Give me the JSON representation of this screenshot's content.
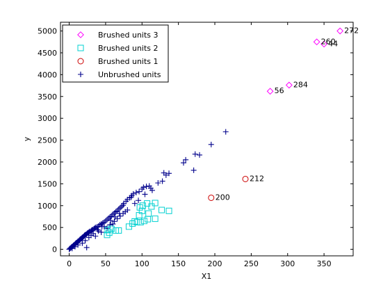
{
  "chart_data": {
    "type": "scatter",
    "title": "",
    "xlabel": "X1",
    "ylabel": "y",
    "xlim": [
      -12,
      390
    ],
    "ylim": [
      -150,
      5200
    ],
    "xticks": [
      0,
      50,
      100,
      150,
      200,
      250,
      300,
      350
    ],
    "yticks": [
      0,
      500,
      1000,
      1500,
      2000,
      2500,
      3000,
      3500,
      4000,
      4500,
      5000
    ],
    "grid": false,
    "legend_position": "top-left",
    "series": [
      {
        "name": "Brushed units 3",
        "marker": "diamond",
        "color": "#ff00ff",
        "points": [
          {
            "x": 276,
            "y": 3620,
            "label": "56"
          },
          {
            "x": 302,
            "y": 3760,
            "label": "284"
          },
          {
            "x": 340,
            "y": 4750,
            "label": "260"
          },
          {
            "x": 350,
            "y": 4700,
            "label": "44"
          },
          {
            "x": 372,
            "y": 5000,
            "label": "272"
          }
        ]
      },
      {
        "name": "Brushed units 2",
        "marker": "square",
        "color": "#00d0d0",
        "points": [
          {
            "x": 52,
            "y": 330
          },
          {
            "x": 55,
            "y": 380
          },
          {
            "x": 53,
            "y": 440
          },
          {
            "x": 58,
            "y": 470
          },
          {
            "x": 64,
            "y": 430
          },
          {
            "x": 68,
            "y": 430
          },
          {
            "x": 82,
            "y": 520
          },
          {
            "x": 87,
            "y": 590
          },
          {
            "x": 90,
            "y": 640
          },
          {
            "x": 93,
            "y": 620
          },
          {
            "x": 98,
            "y": 620
          },
          {
            "x": 103,
            "y": 650
          },
          {
            "x": 108,
            "y": 690
          },
          {
            "x": 118,
            "y": 700
          },
          {
            "x": 127,
            "y": 900
          },
          {
            "x": 137,
            "y": 880
          },
          {
            "x": 97,
            "y": 960
          },
          {
            "x": 101,
            "y": 1000
          },
          {
            "x": 107,
            "y": 1050
          },
          {
            "x": 113,
            "y": 980
          },
          {
            "x": 118,
            "y": 1060
          },
          {
            "x": 96,
            "y": 780
          },
          {
            "x": 100,
            "y": 880
          },
          {
            "x": 109,
            "y": 820
          }
        ]
      },
      {
        "name": "Brushed units 1",
        "marker": "circle",
        "color": "#cc0000",
        "points": [
          {
            "x": 195,
            "y": 1180,
            "label": "200"
          },
          {
            "x": 242,
            "y": 1610,
            "label": "212"
          }
        ]
      },
      {
        "name": "Unbrushed units",
        "marker": "plus",
        "color": "#00008b",
        "points": [
          {
            "x": 0,
            "y": 0
          },
          {
            "x": 1,
            "y": 20
          },
          {
            "x": 2,
            "y": 30
          },
          {
            "x": 3,
            "y": 50
          },
          {
            "x": 4,
            "y": 60
          },
          {
            "x": 5,
            "y": 70
          },
          {
            "x": 6,
            "y": 90
          },
          {
            "x": 7,
            "y": 100
          },
          {
            "x": 8,
            "y": 120
          },
          {
            "x": 9,
            "y": 140
          },
          {
            "x": 10,
            "y": 150
          },
          {
            "x": 11,
            "y": 160
          },
          {
            "x": 12,
            "y": 180
          },
          {
            "x": 13,
            "y": 190
          },
          {
            "x": 14,
            "y": 210
          },
          {
            "x": 15,
            "y": 230
          },
          {
            "x": 16,
            "y": 240
          },
          {
            "x": 17,
            "y": 250
          },
          {
            "x": 18,
            "y": 270
          },
          {
            "x": 19,
            "y": 280
          },
          {
            "x": 20,
            "y": 300
          },
          {
            "x": 21,
            "y": 320
          },
          {
            "x": 22,
            "y": 330
          },
          {
            "x": 23,
            "y": 340
          },
          {
            "x": 24,
            "y": 350
          },
          {
            "x": 25,
            "y": 370
          },
          {
            "x": 26,
            "y": 380
          },
          {
            "x": 27,
            "y": 390
          },
          {
            "x": 28,
            "y": 410
          },
          {
            "x": 30,
            "y": 420
          },
          {
            "x": 31,
            "y": 440
          },
          {
            "x": 32,
            "y": 450
          },
          {
            "x": 34,
            "y": 470
          },
          {
            "x": 35,
            "y": 480
          },
          {
            "x": 36,
            "y": 500
          },
          {
            "x": 38,
            "y": 510
          },
          {
            "x": 40,
            "y": 530
          },
          {
            "x": 42,
            "y": 560
          },
          {
            "x": 44,
            "y": 580
          },
          {
            "x": 46,
            "y": 600
          },
          {
            "x": 48,
            "y": 620
          },
          {
            "x": 50,
            "y": 650
          },
          {
            "x": 52,
            "y": 680
          },
          {
            "x": 54,
            "y": 710
          },
          {
            "x": 56,
            "y": 740
          },
          {
            "x": 58,
            "y": 760
          },
          {
            "x": 60,
            "y": 800
          },
          {
            "x": 62,
            "y": 830
          },
          {
            "x": 64,
            "y": 860
          },
          {
            "x": 66,
            "y": 880
          },
          {
            "x": 68,
            "y": 920
          },
          {
            "x": 70,
            "y": 950
          },
          {
            "x": 72,
            "y": 980
          },
          {
            "x": 74,
            "y": 1010
          },
          {
            "x": 75,
            "y": 1050
          },
          {
            "x": 78,
            "y": 1100
          },
          {
            "x": 80,
            "y": 1140
          },
          {
            "x": 83,
            "y": 1180
          },
          {
            "x": 86,
            "y": 1230
          },
          {
            "x": 88,
            "y": 1270
          },
          {
            "x": 92,
            "y": 1300
          },
          {
            "x": 96,
            "y": 1320
          },
          {
            "x": 100,
            "y": 1380
          },
          {
            "x": 102,
            "y": 1420
          },
          {
            "x": 106,
            "y": 1440
          },
          {
            "x": 110,
            "y": 1450
          },
          {
            "x": 112,
            "y": 1400
          },
          {
            "x": 130,
            "y": 1750
          },
          {
            "x": 133,
            "y": 1700
          },
          {
            "x": 137,
            "y": 1740
          },
          {
            "x": 128,
            "y": 1560
          },
          {
            "x": 122,
            "y": 1520
          },
          {
            "x": 157,
            "y": 1980
          },
          {
            "x": 160,
            "y": 2050
          },
          {
            "x": 171,
            "y": 1810
          },
          {
            "x": 173,
            "y": 2180
          },
          {
            "x": 179,
            "y": 2160
          },
          {
            "x": 195,
            "y": 2400
          },
          {
            "x": 215,
            "y": 2690
          },
          {
            "x": 85,
            "y": 1190
          },
          {
            "x": 77,
            "y": 860
          },
          {
            "x": 62,
            "y": 640
          },
          {
            "x": 48,
            "y": 520
          },
          {
            "x": 40,
            "y": 420
          },
          {
            "x": 30,
            "y": 320
          },
          {
            "x": 22,
            "y": 200
          },
          {
            "x": 12,
            "y": 100
          },
          {
            "x": 24,
            "y": 40
          },
          {
            "x": 36,
            "y": 300
          },
          {
            "x": 44,
            "y": 390
          },
          {
            "x": 52,
            "y": 480
          },
          {
            "x": 56,
            "y": 560
          },
          {
            "x": 60,
            "y": 580
          },
          {
            "x": 66,
            "y": 700
          },
          {
            "x": 70,
            "y": 760
          },
          {
            "x": 74,
            "y": 820
          },
          {
            "x": 80,
            "y": 900
          },
          {
            "x": 90,
            "y": 1050
          },
          {
            "x": 95,
            "y": 1120
          },
          {
            "x": 104,
            "y": 1260
          },
          {
            "x": 114,
            "y": 1350
          },
          {
            "x": 18,
            "y": 140
          },
          {
            "x": 8,
            "y": 60
          },
          {
            "x": 4,
            "y": 20
          },
          {
            "x": 27,
            "y": 270
          },
          {
            "x": 33,
            "y": 360
          },
          {
            "x": 39,
            "y": 450
          },
          {
            "x": 45,
            "y": 520
          },
          {
            "x": 57,
            "y": 660
          },
          {
            "x": 63,
            "y": 740
          },
          {
            "x": 69,
            "y": 820
          }
        ]
      }
    ]
  }
}
